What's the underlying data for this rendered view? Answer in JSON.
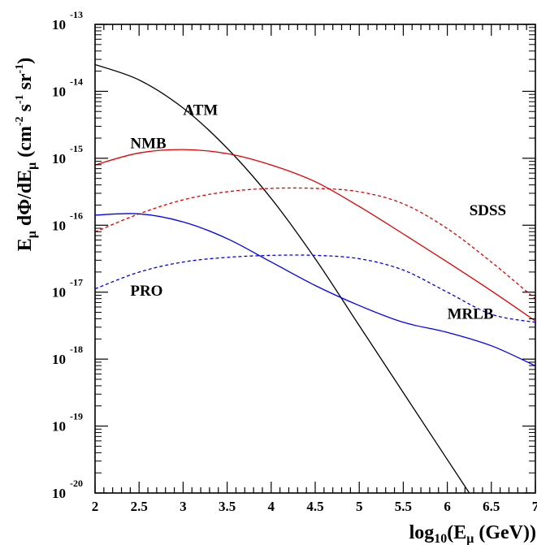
{
  "chart_data": {
    "type": "line",
    "xlabel": {
      "prefix": "log",
      "base": "10",
      "open": "(E",
      "sub": "μ",
      "close": " (GeV))"
    },
    "ylabel": {
      "t1": "E",
      "t1_sub": "μ",
      "t2": " dΦ/dE",
      "t2_sub": "μ",
      "t3": " (cm",
      "t3_sup": "-2",
      "t4": " s",
      "t4_sup": "-1",
      "t5": " sr",
      "t5_sup": "-1",
      "t6": ")"
    },
    "y_scale": "log",
    "xlim": [
      2,
      7
    ],
    "ylim_exp": [
      -20,
      -13
    ],
    "x_ticks": [
      2,
      2.5,
      3,
      3.5,
      4,
      4.5,
      5,
      5.5,
      6,
      6.5,
      7
    ],
    "x_tick_labels": [
      "2",
      "2.5",
      "3",
      "3.5",
      "4",
      "4.5",
      "5",
      "5.5",
      "6",
      "6.5",
      "7"
    ],
    "y_ticks": [
      {
        "base": "10",
        "exp": "-13"
      },
      {
        "base": "10",
        "exp": "-14"
      },
      {
        "base": "10",
        "exp": "-15"
      },
      {
        "base": "10",
        "exp": "-16"
      },
      {
        "base": "10",
        "exp": "-17"
      },
      {
        "base": "10",
        "exp": "-18"
      },
      {
        "base": "10",
        "exp": "-19"
      },
      {
        "base": "10",
        "exp": "-20"
      }
    ],
    "series": [
      {
        "name": "ATM",
        "color": "#000000",
        "dash": "solid",
        "x": [
          2.0,
          2.5,
          3.0,
          3.5,
          4.0,
          4.5,
          5.0,
          5.5,
          6.0,
          6.5
        ],
        "log10_y": [
          -13.6,
          -13.83,
          -14.25,
          -14.85,
          -15.6,
          -16.5,
          -17.5,
          -18.5,
          -19.5,
          -20.5
        ]
      },
      {
        "name": "NMB",
        "color": "#e00000",
        "dash": "solid",
        "x": [
          2.0,
          2.5,
          3.0,
          3.5,
          4.0,
          4.5,
          5.0,
          5.5,
          6.0,
          6.5,
          7.0
        ],
        "log10_y": [
          -15.1,
          -14.92,
          -14.87,
          -14.93,
          -15.1,
          -15.35,
          -15.72,
          -16.13,
          -16.55,
          -16.98,
          -17.43
        ]
      },
      {
        "name": "SDSS",
        "color": "#e00000",
        "dash": "dashed",
        "x": [
          2.0,
          2.5,
          3.0,
          3.5,
          4.0,
          4.5,
          5.0,
          5.5,
          6.0,
          6.5,
          7.0
        ],
        "log10_y": [
          -16.1,
          -15.83,
          -15.62,
          -15.5,
          -15.45,
          -15.45,
          -15.5,
          -15.68,
          -16.05,
          -16.55,
          -17.1
        ]
      },
      {
        "name": "MRLB",
        "color": "#0000ee",
        "dash": "solid",
        "x": [
          2.0,
          2.5,
          3.0,
          3.5,
          4.0,
          4.5,
          5.0,
          5.5,
          6.0,
          6.5,
          7.0
        ],
        "log10_y": [
          -15.85,
          -15.83,
          -15.95,
          -16.2,
          -16.55,
          -16.9,
          -17.2,
          -17.45,
          -17.6,
          -17.8,
          -18.1
        ]
      },
      {
        "name": "PRO",
        "color": "#0000ee",
        "dash": "dashed",
        "x": [
          2.0,
          2.5,
          3.0,
          3.5,
          4.0,
          4.5,
          5.0,
          5.5,
          6.0,
          6.5,
          7.0
        ],
        "log10_y": [
          -16.95,
          -16.7,
          -16.55,
          -16.48,
          -16.45,
          -16.45,
          -16.5,
          -16.67,
          -17.0,
          -17.33,
          -17.45
        ]
      }
    ],
    "annotations": [
      "ATM",
      "NMB",
      "SDSS",
      "PRO",
      "MRLB"
    ],
    "grid": false,
    "legend": "none"
  }
}
